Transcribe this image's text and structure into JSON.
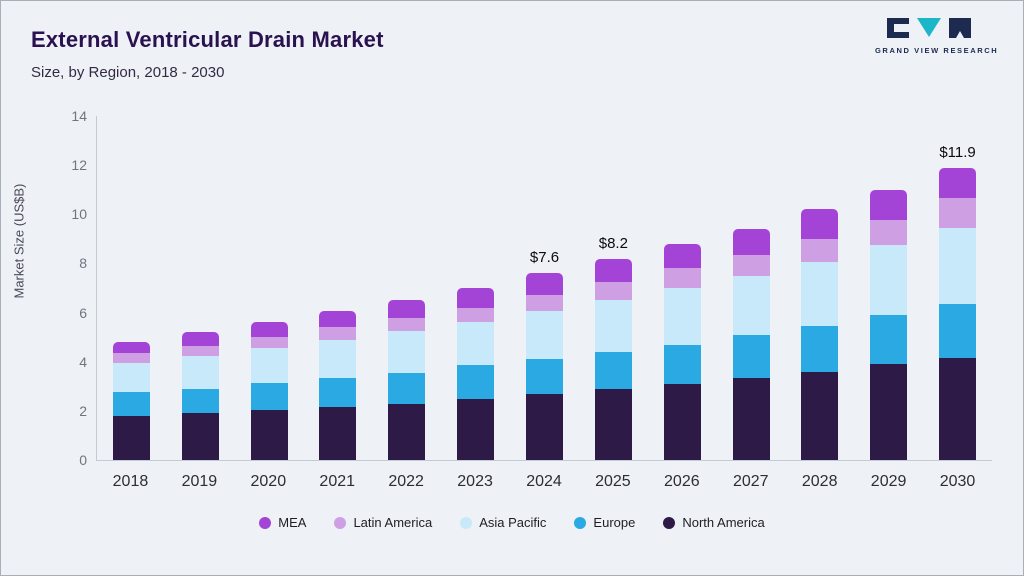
{
  "header": {
    "title": "External Ventricular Drain Market",
    "subtitle": "Size, by Region, 2018 - 2030",
    "logo_text": "GRAND VIEW RESEARCH"
  },
  "chart_data": {
    "type": "bar",
    "stacked": true,
    "title": "External Ventricular Drain Market Size, by Region, 2018 - 2030",
    "xlabel": "",
    "ylabel": "Market Size (US$B)",
    "ylim": [
      0,
      14
    ],
    "yticks": [
      0,
      2,
      4,
      6,
      8,
      10,
      12,
      14
    ],
    "grid": false,
    "legend_position": "bottom",
    "categories": [
      "2018",
      "2019",
      "2020",
      "2021",
      "2022",
      "2023",
      "2024",
      "2025",
      "2026",
      "2027",
      "2028",
      "2029",
      "2030"
    ],
    "series": [
      {
        "name": "North America",
        "color": "#2e1a47",
        "values": [
          1.8,
          1.9,
          2.05,
          2.15,
          2.3,
          2.5,
          2.7,
          2.9,
          3.1,
          3.35,
          3.6,
          3.9,
          4.15
        ]
      },
      {
        "name": "Europe",
        "color": "#2ba9e2",
        "values": [
          0.95,
          1.0,
          1.1,
          1.2,
          1.25,
          1.35,
          1.4,
          1.5,
          1.6,
          1.75,
          1.85,
          2.0,
          2.2
        ]
      },
      {
        "name": "Asia Pacific",
        "color": "#c8e9f9",
        "values": [
          1.2,
          1.35,
          1.4,
          1.55,
          1.7,
          1.75,
          1.95,
          2.1,
          2.3,
          2.4,
          2.6,
          2.85,
          3.1
        ]
      },
      {
        "name": "Latin America",
        "color": "#cf9fe4",
        "values": [
          0.4,
          0.4,
          0.45,
          0.5,
          0.55,
          0.6,
          0.65,
          0.75,
          0.8,
          0.85,
          0.95,
          1.0,
          1.2
        ]
      },
      {
        "name": "MEA",
        "color": "#a444d6",
        "values": [
          0.45,
          0.55,
          0.6,
          0.65,
          0.7,
          0.8,
          0.9,
          0.95,
          1.0,
          1.05,
          1.2,
          1.25,
          1.25
        ]
      }
    ],
    "totals": [
      4.8,
      5.2,
      5.6,
      6.05,
      6.5,
      7.0,
      7.6,
      8.2,
      8.8,
      9.4,
      10.2,
      11.0,
      11.9
    ],
    "annotations": {
      "2024": "$7.6",
      "2025": "$8.2",
      "2030": "$11.9"
    },
    "legend": [
      "MEA",
      "Latin America",
      "Asia Pacific",
      "Europe",
      "North America"
    ]
  }
}
